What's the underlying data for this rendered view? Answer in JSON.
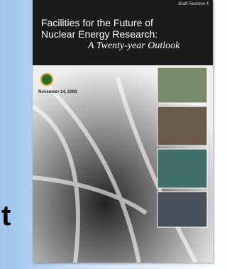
{
  "cover": {
    "draft_label": "Draft Revision 4",
    "title_line1": "Facilities for the Future of",
    "title_line2": "Nuclear Energy Research:",
    "subtitle": "A Twenty-year Outlook",
    "date": "November 14, 2008"
  },
  "slide_fragment": "t"
}
